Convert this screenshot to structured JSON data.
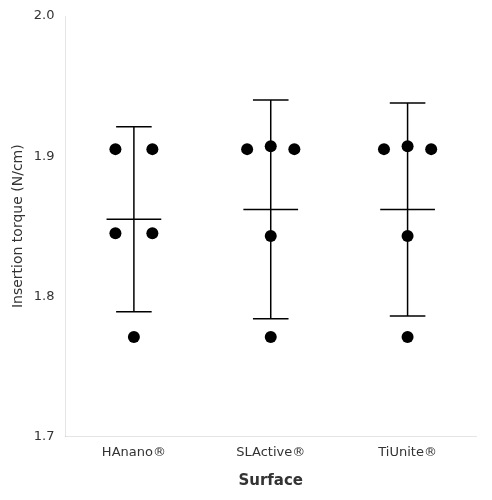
{
  "chart_data": {
    "type": "scatter",
    "categories": [
      "HAnano®",
      "SLActive®",
      "TiUnite®"
    ],
    "values": [
      [
        1.905,
        1.905,
        1.845,
        1.845,
        1.771
      ],
      [
        1.905,
        1.907,
        1.905,
        1.843,
        1.771
      ],
      [
        1.905,
        1.907,
        1.905,
        1.843,
        1.771
      ]
    ],
    "means": [
      1.855,
      1.862,
      1.862
    ],
    "ci_upper": [
      1.921,
      1.94,
      1.938
    ],
    "ci_lower": [
      1.789,
      1.784,
      1.786
    ],
    "color": "#000000",
    "xlabel": "Surface",
    "ylabel": "Insertion torque (N/cm)",
    "ylim": [
      1.7,
      2.0
    ],
    "yticks": [
      1.7,
      1.8,
      1.9,
      {
        "value": 2.0,
        "label": "2.0"
      }
    ],
    "grid": false
  }
}
